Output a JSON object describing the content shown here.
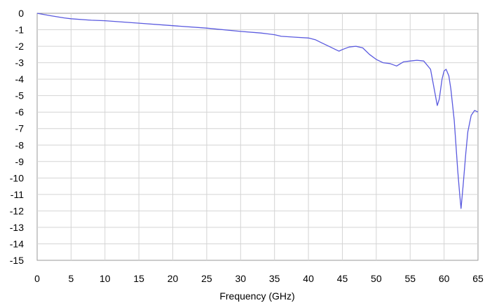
{
  "chart_data": {
    "type": "line",
    "title": "",
    "xlabel": "Frequency (GHz)",
    "ylabel": "",
    "xlim": [
      0,
      65
    ],
    "ylim": [
      -15,
      0
    ],
    "grid": true,
    "x_ticks": [
      "0",
      "5",
      "10",
      "15",
      "20",
      "25",
      "30",
      "35",
      "40",
      "45",
      "50",
      "55",
      "60",
      "65"
    ],
    "y_ticks": [
      "0",
      "-1",
      "-2",
      "-3",
      "-4",
      "-5",
      "-6",
      "-7",
      "-8",
      "-9",
      "-10",
      "-11",
      "-12",
      "-13",
      "-14",
      "-15"
    ],
    "series": [
      {
        "color": "#5a5adf",
        "x": [
          0,
          2,
          4,
          5,
          8,
          10,
          15,
          20,
          25,
          30,
          33,
          35,
          36,
          38,
          40,
          41,
          42,
          43,
          44,
          44.5,
          45,
          46,
          47,
          48,
          49,
          50,
          51,
          52,
          53,
          54,
          55,
          56,
          57,
          58,
          58.5,
          59,
          59.3,
          59.7,
          60,
          60.3,
          60.7,
          61,
          61.5,
          62,
          62.3,
          62.5,
          62.8,
          63.2,
          63.5,
          64,
          64.5,
          65
        ],
        "y": [
          0,
          -0.15,
          -0.28,
          -0.33,
          -0.42,
          -0.45,
          -0.6,
          -0.75,
          -0.9,
          -1.1,
          -1.2,
          -1.3,
          -1.4,
          -1.45,
          -1.5,
          -1.6,
          -1.8,
          -2.0,
          -2.2,
          -2.3,
          -2.2,
          -2.05,
          -2.0,
          -2.1,
          -2.5,
          -2.8,
          -3.0,
          -3.05,
          -3.2,
          -2.95,
          -2.9,
          -2.85,
          -2.9,
          -3.4,
          -4.5,
          -5.6,
          -5.2,
          -4.0,
          -3.5,
          -3.4,
          -3.8,
          -4.6,
          -6.5,
          -9.5,
          -11.0,
          -11.85,
          -10.5,
          -8.5,
          -7.2,
          -6.2,
          -5.9,
          -6.0
        ]
      }
    ]
  }
}
